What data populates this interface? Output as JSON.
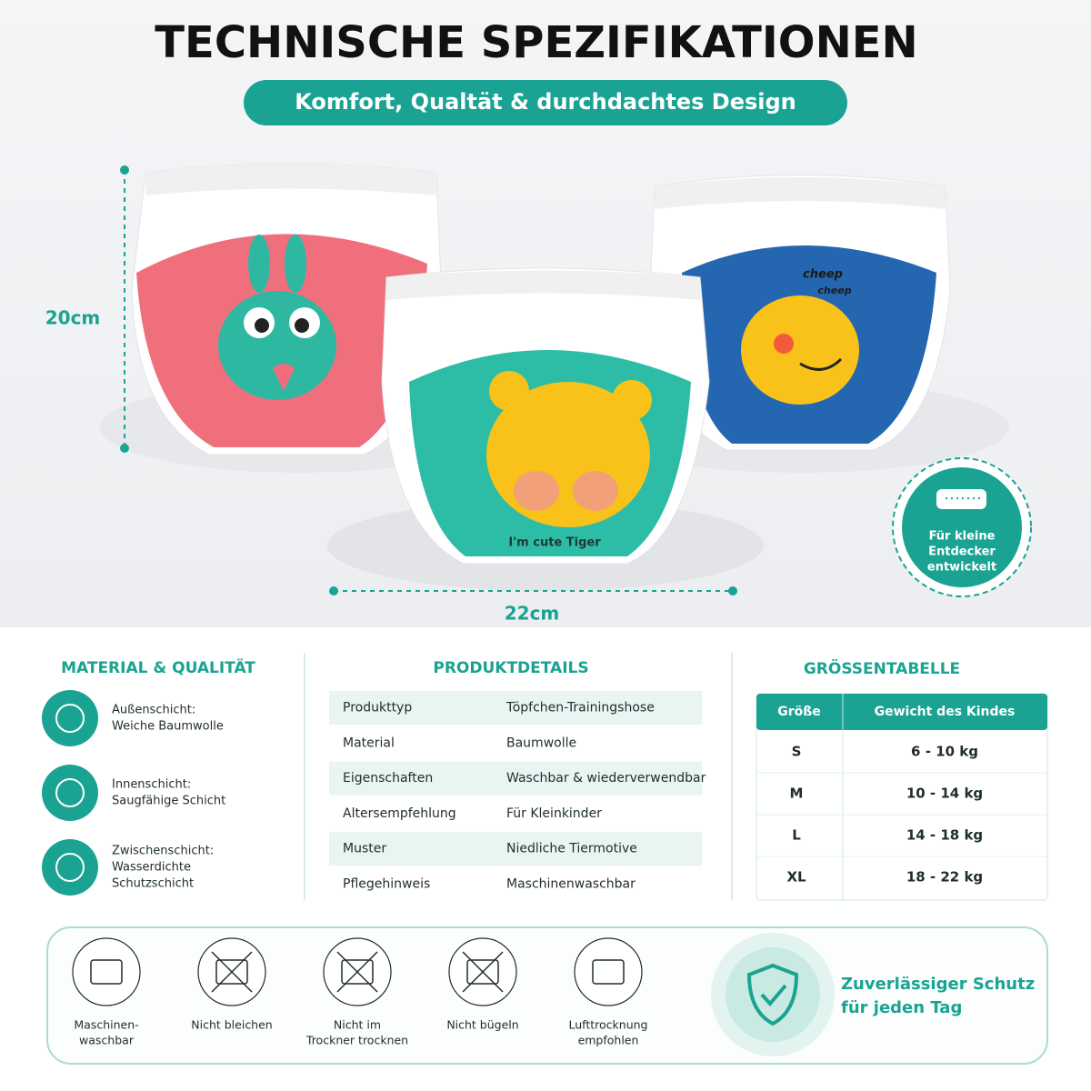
{
  "header": {
    "title": "TECHNISCHE SPEZIFIKATIONEN",
    "subtitle": "Komfort, Qualtät & durchdachtes Design"
  },
  "product": {
    "height_label": "20cm",
    "width_label": "22cm",
    "prints": [
      "I'm cute Tiger",
      "cheep",
      "cheep"
    ]
  },
  "badge": {
    "lines": [
      "Für kleine",
      "Entdecker",
      "entwickelt"
    ]
  },
  "material": {
    "title": "MATERIAL & QUALITÄT",
    "items": [
      {
        "lines": [
          "Außenschicht:",
          "Weiche Baumwolle"
        ]
      },
      {
        "lines": [
          "Innenschicht:",
          "Saugfähige Schicht"
        ]
      },
      {
        "lines": [
          "Zwischenschicht:",
          "Wasserdichte",
          "Schutzschicht"
        ]
      }
    ]
  },
  "details": {
    "title": "PRODUKTDETAILS",
    "rows": [
      [
        "Produkttyp",
        "Töpfchen-Trainingshose"
      ],
      [
        "Material",
        "Baumwolle"
      ],
      [
        "Eigenschaften",
        "Waschbar & wiederverwendbar"
      ],
      [
        "Altersempfehlung",
        "Für Kleinkinder"
      ],
      [
        "Muster",
        "Niedliche Tiermotive"
      ],
      [
        "Pflegehinweis",
        "Maschinenwaschbar"
      ]
    ]
  },
  "sizes": {
    "title": "GRÖSSENTABELLE",
    "header": [
      "Größe",
      "Gewicht des Kindes"
    ],
    "rows": [
      [
        "S",
        "6 - 10 kg"
      ],
      [
        "M",
        "10 - 14 kg"
      ],
      [
        "L",
        "14 - 18 kg"
      ],
      [
        "XL",
        "18 - 22 kg"
      ]
    ]
  },
  "care": {
    "items": [
      {
        "lines": [
          "Maschinen-",
          "waschbar"
        ]
      },
      {
        "lines": [
          "Nicht bleichen"
        ]
      },
      {
        "lines": [
          "Nicht im",
          "Trockner trocknen"
        ]
      },
      {
        "lines": [
          "Nicht bügeln"
        ]
      },
      {
        "lines": [
          "Lufttrocknung",
          "empfohlen"
        ]
      }
    ]
  },
  "promise": {
    "lines": [
      "Zuverlässiger Schutz",
      "für jeden Tag"
    ]
  }
}
